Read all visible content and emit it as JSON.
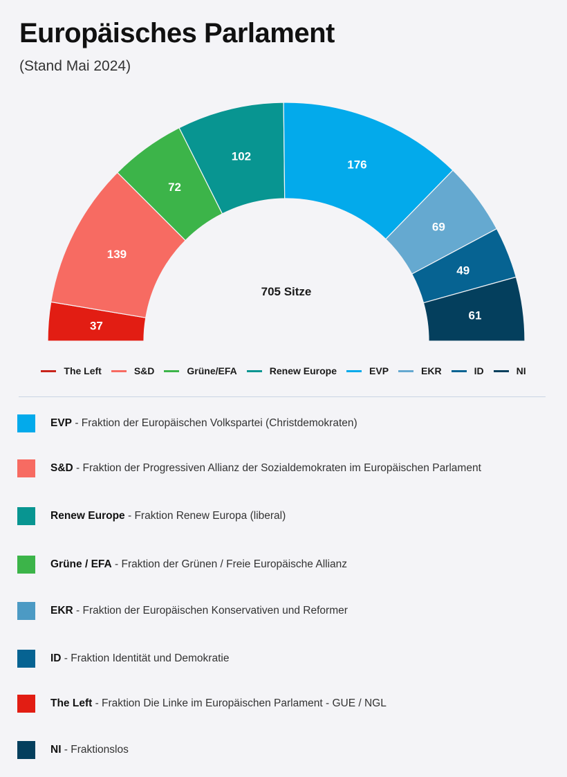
{
  "header": {
    "title": "Europäisches Parlament",
    "subtitle": "(Stand Mai 2024)"
  },
  "chart_data": {
    "type": "pie",
    "variant": "hemicycle",
    "title": "Europäisches Parlament",
    "subtitle": "(Stand Mai 2024)",
    "center_label": "705 Sitze",
    "total": 705,
    "categories": [
      "The Left",
      "S&D",
      "Grüne/EFA",
      "Renew Europe",
      "EVP",
      "EKR",
      "ID",
      "NI"
    ],
    "values": [
      37,
      139,
      72,
      102,
      176,
      69,
      49,
      61
    ],
    "colors": [
      "#e21d13",
      "#f76b62",
      "#3cb449",
      "#089591",
      "#03aaeb",
      "#65a9d0",
      "#066392",
      "#043f5d"
    ],
    "legend_position": "bottom"
  },
  "legend": [
    {
      "label": "The Left",
      "color": "#c8241b"
    },
    {
      "label": "S&D",
      "color": "#f76b62"
    },
    {
      "label": "Grüne/EFA",
      "color": "#3cb449"
    },
    {
      "label": "Renew Europe",
      "color": "#089591"
    },
    {
      "label": "EVP",
      "color": "#03aaeb"
    },
    {
      "label": "EKR",
      "color": "#65a9d0"
    },
    {
      "label": "ID",
      "color": "#066392"
    },
    {
      "label": "NI",
      "color": "#043f5d"
    }
  ],
  "descriptions": [
    {
      "abbr": "EVP",
      "text": " - Fraktion der Europäischen Volkspartei (Christdemokraten)",
      "color": "#03aaeb"
    },
    {
      "abbr": "S&D",
      "text": " - Fraktion der Progressiven Allianz der Sozialdemokraten im Europäischen Parlament",
      "color": "#f76b62"
    },
    {
      "abbr": "Renew Europe",
      "text": " - Fraktion Renew Europa (liberal)",
      "color": "#089591"
    },
    {
      "abbr": "Grüne / EFA",
      "text": " - Fraktion der Grünen / Freie Europäische Allianz",
      "color": "#3cb449"
    },
    {
      "abbr": "EKR",
      "text": " - Fraktion der Europäischen Konservativen und Reformer",
      "color": "#4c9ac4"
    },
    {
      "abbr": "ID",
      "text": " - Fraktion Identität und Demokratie",
      "color": "#066392"
    },
    {
      "abbr": "The Left",
      "text": " - Fraktion Die Linke im Europäischen Parlament - GUE / NGL",
      "color": "#e21d13"
    },
    {
      "abbr": "NI",
      "text": " - Fraktionslos",
      "color": "#043f5d"
    }
  ]
}
